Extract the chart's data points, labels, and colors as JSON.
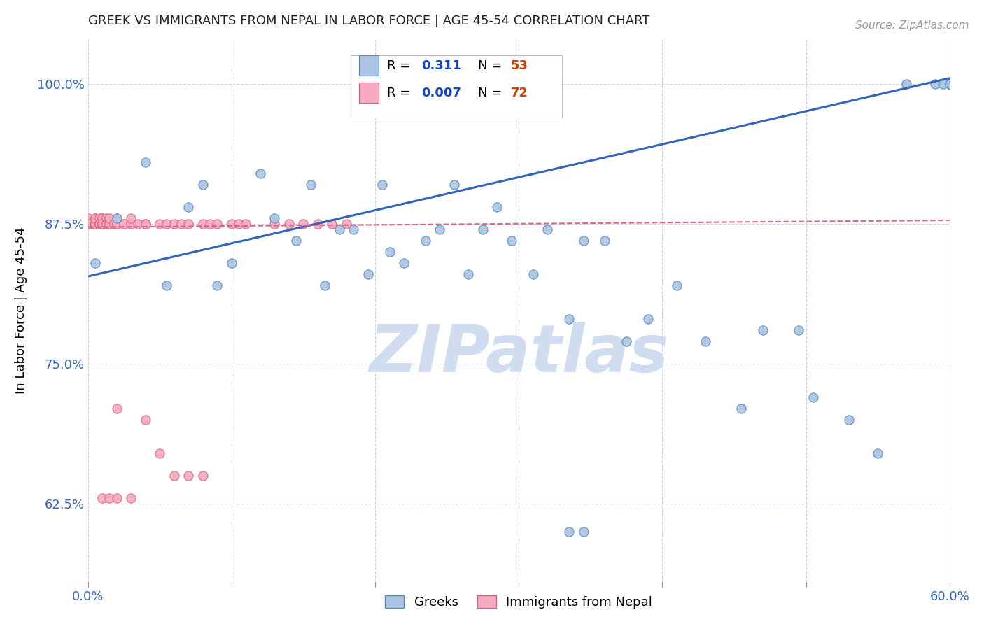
{
  "title": "GREEK VS IMMIGRANTS FROM NEPAL IN LABOR FORCE | AGE 45-54 CORRELATION CHART",
  "source_text": "Source: ZipAtlas.com",
  "ylabel": "In Labor Force | Age 45-54",
  "xlim": [
    0.0,
    0.6
  ],
  "ylim": [
    0.555,
    1.04
  ],
  "yticks": [
    0.625,
    0.75,
    0.875,
    1.0
  ],
  "ytick_labels": [
    "62.5%",
    "75.0%",
    "87.5%",
    "100.0%"
  ],
  "xtick_labels": [
    "0.0%",
    "",
    "",
    "",
    "",
    "",
    "60.0%"
  ],
  "blue_color": "#aac4e2",
  "pink_color": "#f5aabf",
  "blue_edge_color": "#5588bb",
  "pink_edge_color": "#e06080",
  "blue_line_color": "#3366bb",
  "pink_line_color": "#dd6688",
  "legend_R_color": "#1144cc",
  "legend_N_color": "#cc4400",
  "watermark_color": "#d0dcf0",
  "title_color": "#222222",
  "source_color": "#999999",
  "axis_color": "#3366bb",
  "grid_color": "#c8d4e8",
  "blue_scatter_x": [
    0.005,
    0.02,
    0.04,
    0.055,
    0.07,
    0.08,
    0.09,
    0.1,
    0.12,
    0.13,
    0.145,
    0.155,
    0.165,
    0.175,
    0.185,
    0.195,
    0.205,
    0.21,
    0.22,
    0.235,
    0.245,
    0.255,
    0.265,
    0.275,
    0.285,
    0.295,
    0.31,
    0.32,
    0.335,
    0.345,
    0.36,
    0.375,
    0.39,
    0.41,
    0.43,
    0.455,
    0.47,
    0.495,
    0.505,
    0.53,
    0.55,
    0.57,
    0.59,
    0.595,
    0.6,
    0.6,
    0.6,
    0.6,
    0.6,
    0.6,
    0.6,
    0.335,
    0.345
  ],
  "blue_scatter_y": [
    0.84,
    0.88,
    0.93,
    0.82,
    0.89,
    0.91,
    0.82,
    0.84,
    0.92,
    0.88,
    0.86,
    0.91,
    0.82,
    0.87,
    0.87,
    0.83,
    0.91,
    0.85,
    0.84,
    0.86,
    0.87,
    0.91,
    0.83,
    0.87,
    0.89,
    0.86,
    0.83,
    0.87,
    0.79,
    0.86,
    0.86,
    0.77,
    0.79,
    0.82,
    0.77,
    0.71,
    0.78,
    0.78,
    0.72,
    0.7,
    0.67,
    1.0,
    1.0,
    1.0,
    1.0,
    1.0,
    1.0,
    1.0,
    1.0,
    1.0,
    1.0,
    0.6,
    0.6
  ],
  "pink_scatter_x": [
    0.0,
    0.0,
    0.0,
    0.0,
    0.0,
    0.0,
    0.0,
    0.0,
    0.0,
    0.005,
    0.005,
    0.005,
    0.005,
    0.005,
    0.005,
    0.005,
    0.008,
    0.008,
    0.008,
    0.008,
    0.01,
    0.01,
    0.01,
    0.01,
    0.01,
    0.01,
    0.013,
    0.013,
    0.013,
    0.015,
    0.015,
    0.015,
    0.018,
    0.018,
    0.02,
    0.02,
    0.02,
    0.025,
    0.025,
    0.03,
    0.03,
    0.03,
    0.035,
    0.04,
    0.04,
    0.05,
    0.055,
    0.06,
    0.065,
    0.07,
    0.08,
    0.085,
    0.09,
    0.1,
    0.105,
    0.11,
    0.13,
    0.14,
    0.15,
    0.16,
    0.17,
    0.18,
    0.02,
    0.04,
    0.05,
    0.06,
    0.07,
    0.08,
    0.01,
    0.015,
    0.02,
    0.03
  ],
  "pink_scatter_y": [
    0.875,
    0.875,
    0.875,
    0.875,
    0.875,
    0.875,
    0.875,
    0.88,
    0.875,
    0.875,
    0.875,
    0.88,
    0.875,
    0.875,
    0.875,
    0.88,
    0.875,
    0.875,
    0.88,
    0.875,
    0.875,
    0.875,
    0.88,
    0.875,
    0.88,
    0.875,
    0.875,
    0.88,
    0.875,
    0.875,
    0.875,
    0.88,
    0.875,
    0.875,
    0.875,
    0.88,
    0.875,
    0.875,
    0.875,
    0.875,
    0.875,
    0.88,
    0.875,
    0.875,
    0.875,
    0.875,
    0.875,
    0.875,
    0.875,
    0.875,
    0.875,
    0.875,
    0.875,
    0.875,
    0.875,
    0.875,
    0.875,
    0.875,
    0.875,
    0.875,
    0.875,
    0.875,
    0.71,
    0.7,
    0.67,
    0.65,
    0.65,
    0.65,
    0.63,
    0.63,
    0.63,
    0.63
  ]
}
